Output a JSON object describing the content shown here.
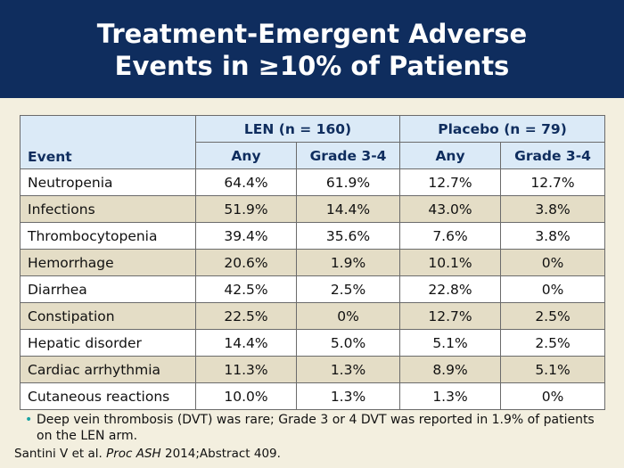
{
  "title": {
    "line1": "Treatment-Emergent Adverse",
    "line2": "Events in ≥10% of Patients"
  },
  "table": {
    "event_header": "Event",
    "groups": [
      "LEN (n = 160)",
      "Placebo (n = 79)"
    ],
    "subheaders": [
      "Any",
      "Grade 3-4",
      "Any",
      "Grade 3-4"
    ],
    "rows": [
      {
        "event": "Neutropenia",
        "values": [
          "64.4%",
          "61.9%",
          "12.7%",
          "12.7%"
        ]
      },
      {
        "event": "Infections",
        "values": [
          "51.9%",
          "14.4%",
          "43.0%",
          "3.8%"
        ]
      },
      {
        "event": "Thrombocytopenia",
        "values": [
          "39.4%",
          "35.6%",
          "7.6%",
          "3.8%"
        ]
      },
      {
        "event": "Hemorrhage",
        "values": [
          "20.6%",
          "1.9%",
          "10.1%",
          "0%"
        ]
      },
      {
        "event": "Diarrhea",
        "values": [
          "42.5%",
          "2.5%",
          "22.8%",
          "0%"
        ]
      },
      {
        "event": "Constipation",
        "values": [
          "22.5%",
          "0%",
          "12.7%",
          "2.5%"
        ]
      },
      {
        "event": "Hepatic disorder",
        "values": [
          "14.4%",
          "5.0%",
          "5.1%",
          "2.5%"
        ]
      },
      {
        "event": "Cardiac arrhythmia",
        "values": [
          "11.3%",
          "1.3%",
          "8.9%",
          "5.1%"
        ]
      },
      {
        "event": "Cutaneous reactions",
        "values": [
          "10.0%",
          "1.3%",
          "1.3%",
          "0%"
        ]
      }
    ]
  },
  "footnote": {
    "bullet": "•",
    "text": "Deep vein thrombosis (DVT) was rare; Grade 3 or 4 DVT was reported in 1.9% of patients on the LEN arm."
  },
  "citation": {
    "authors": "Santini V et al.",
    "journal": "Proc ASH",
    "rest": "2014;Abstract 409."
  },
  "colors": {
    "title_bg": "#0f2d5e",
    "header_bg": "#dbeaf7",
    "row_shade": "#e4ddc6",
    "slide_bg": "#f3efdf",
    "bullet": "#1aa3a3"
  }
}
